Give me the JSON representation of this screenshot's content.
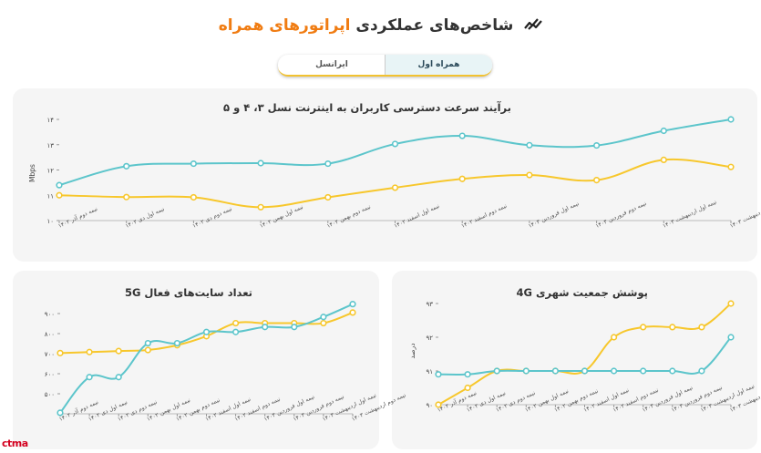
{
  "header": {
    "title_main": "شاخص‌های عملکردی",
    "title_accent": "اپراتورهای همراه"
  },
  "tabs": {
    "active": "همراه اول",
    "other": "ایرانسل"
  },
  "brand": "ctma",
  "colors": {
    "mci": "#5cc5cb",
    "irancell": "#f7c72c",
    "accent": "#f07c12"
  },
  "chart_data": [
    {
      "id": "speed",
      "type": "line",
      "title": "برآیند سرعت دسترسی کاربران به اینترنت نسل ۳، ۴ و ۵",
      "ylabel": "Mbps",
      "ylim": [
        10,
        14
      ],
      "yticks": [
        10,
        11,
        12,
        13,
        14
      ],
      "ytick_labels": [
        "۱۰",
        "۱۱",
        "۱۲",
        "۱۳",
        "۱۴"
      ],
      "categories": [
        "نیمه دوم آذر ۱۴۰۲",
        "نیمه اول دی ۱۴۰۲",
        "نیمه دوم دی ۱۴۰۲",
        "نیمه اول بهمن ۱۴۰۲",
        "نیمه دوم بهمن ۱۴۰۲",
        "نیمه اول اسفند ۱۴۰۲",
        "نیمه دوم اسفند ۱۴۰۲",
        "نیمه اول فروردین ۱۴۰۳",
        "نیمه دوم فروردین ۱۴۰۳",
        "نیمه اول اردیبهشت ۱۴۰۳",
        "نیمه دوم اردیبهشت ۱۴۰۳"
      ],
      "series": [
        {
          "name": "همراه اول",
          "values": [
            11.4,
            12.15,
            12.25,
            12.27,
            12.25,
            13.03,
            13.35,
            12.98,
            12.97,
            13.55,
            14.0
          ]
        },
        {
          "name": "ایرانسل",
          "values": [
            11.0,
            10.93,
            10.92,
            10.53,
            10.92,
            11.3,
            11.65,
            11.8,
            11.6,
            12.4,
            12.12
          ]
        }
      ]
    },
    {
      "id": "sites",
      "type": "line",
      "title": "تعداد سایت‌های فعال 5G",
      "ylabel": "",
      "ylim": [
        400,
        950
      ],
      "yticks": [
        500,
        600,
        700,
        800,
        900
      ],
      "ytick_labels": [
        "۵۰۰",
        "۶۰۰",
        "۷۰۰",
        "۸۰۰",
        "۹۰۰"
      ],
      "categories": [
        "نیمه دوم آذر ۱۴۰۲",
        "نیمه اول دی ۱۴۰۲",
        "نیمه دوم دی ۱۴۰۲",
        "نیمه اول بهمن ۱۴۰۲",
        "نیمه دوم بهمن ۱۴۰۲",
        "نیمه اول اسفند ۱۴۰۲",
        "نیمه دوم اسفند ۱۴۰۲",
        "نیمه اول فروردین ۱۴۰۳",
        "نیمه دوم فروردین ۱۴۰۳",
        "نیمه اول اردیبهشت ۱۴۰۳",
        "نیمه دوم اردیبهشت ۱۴۰۳"
      ],
      "series": [
        {
          "name": "همراه اول",
          "values": [
            405,
            583,
            583,
            752,
            752,
            808,
            808,
            833,
            833,
            883,
            947
          ]
        },
        {
          "name": "ایرانسل",
          "values": [
            703,
            708,
            713,
            718,
            742,
            787,
            852,
            852,
            852,
            852,
            905
          ]
        }
      ]
    },
    {
      "id": "coverage",
      "type": "line",
      "title": "پوشش جمعیت شهری 4G",
      "ylabel": "درصد",
      "ylim": [
        90,
        93
      ],
      "yticks": [
        90,
        91,
        92,
        93
      ],
      "ytick_labels": [
        "۹۰",
        "۹۱",
        "۹۲",
        "۹۳"
      ],
      "categories": [
        "نیمه دوم آذر ۱۴۰۲",
        "نیمه اول دی ۱۴۰۲",
        "نیمه دوم دی ۱۴۰۲",
        "نیمه اول بهمن ۱۴۰۲",
        "نیمه دوم بهمن ۱۴۰۲",
        "نیمه اول اسفند ۱۴۰۲",
        "نیمه دوم اسفند ۱۴۰۲",
        "نیمه اول فروردین ۱۴۰۳",
        "نیمه دوم فروردین ۱۴۰۳",
        "نیمه اول اردیبهشت ۱۴۰۳",
        "نیمه دوم اردیبهشت ۱۴۰۳"
      ],
      "series": [
        {
          "name": "همراه اول",
          "values": [
            90.9,
            90.9,
            91.0,
            91.0,
            91.0,
            91.0,
            91.0,
            91.0,
            91.0,
            91.0,
            92.0
          ]
        },
        {
          "name": "ایرانسل",
          "values": [
            90.0,
            90.5,
            91.0,
            91.0,
            91.0,
            91.0,
            92.0,
            92.3,
            92.3,
            92.3,
            93.0
          ]
        }
      ]
    }
  ]
}
